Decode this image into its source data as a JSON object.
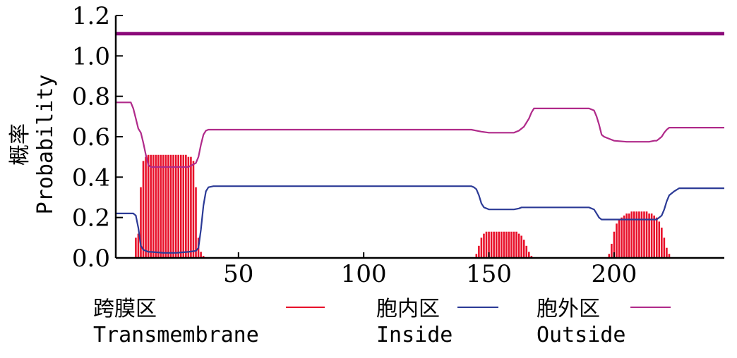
{
  "chart_data": {
    "type": "line",
    "ylabel_cn": "概率",
    "ylabel_en": "Probability",
    "xlim": [
      1,
      244
    ],
    "ylim": [
      0,
      1.2
    ],
    "x_ticks": [
      50,
      100,
      150,
      200
    ],
    "x_tick_labels": [
      "50",
      "100",
      "150",
      "200"
    ],
    "y_ticks": [
      0,
      0.2,
      0.4,
      0.6,
      0.8,
      1.0,
      1.2
    ],
    "y_tick_labels": [
      "0.0",
      "0.2",
      "0.4",
      "0.6",
      "0.8",
      "1.0",
      "1.2"
    ],
    "reference_line": {
      "y": 1.11,
      "color": "#8b0a7a"
    },
    "series": [
      {
        "name_cn": "跨膜区",
        "name_en": "Transmembrane",
        "style": "bars",
        "color": "#e8102a",
        "x": [
          9,
          10,
          11,
          12,
          13,
          14,
          15,
          16,
          17,
          18,
          19,
          20,
          21,
          22,
          23,
          24,
          25,
          26,
          27,
          28,
          29,
          30,
          31,
          32,
          33,
          34,
          35,
          36,
          37,
          145,
          146,
          147,
          148,
          149,
          150,
          151,
          152,
          153,
          154,
          155,
          156,
          157,
          158,
          159,
          160,
          161,
          162,
          163,
          164,
          165,
          166,
          167,
          198,
          199,
          200,
          201,
          202,
          203,
          204,
          205,
          206,
          207,
          208,
          209,
          210,
          211,
          212,
          213,
          214,
          215,
          216,
          217,
          218,
          219,
          220,
          221,
          222
        ],
        "values": [
          0.1,
          0.12,
          0.35,
          0.48,
          0.5,
          0.51,
          0.51,
          0.51,
          0.51,
          0.51,
          0.51,
          0.51,
          0.51,
          0.51,
          0.51,
          0.51,
          0.51,
          0.51,
          0.51,
          0.51,
          0.51,
          0.5,
          0.5,
          0.48,
          0.35,
          0.1,
          0.03,
          0.01,
          0.0,
          0.02,
          0.06,
          0.1,
          0.12,
          0.13,
          0.13,
          0.13,
          0.13,
          0.13,
          0.13,
          0.13,
          0.13,
          0.13,
          0.13,
          0.13,
          0.13,
          0.13,
          0.12,
          0.11,
          0.09,
          0.06,
          0.03,
          0.01,
          0.02,
          0.07,
          0.13,
          0.17,
          0.19,
          0.2,
          0.21,
          0.22,
          0.22,
          0.23,
          0.23,
          0.23,
          0.23,
          0.23,
          0.23,
          0.23,
          0.22,
          0.22,
          0.21,
          0.2,
          0.18,
          0.15,
          0.1,
          0.05,
          0.02
        ]
      },
      {
        "name_cn": "胞内区",
        "name_en": "Inside",
        "style": "line",
        "color": "#2b3a96",
        "x": [
          1,
          8,
          9,
          10,
          11,
          12,
          13,
          14,
          15,
          20,
          25,
          30,
          33,
          34,
          35,
          36,
          37,
          38,
          40,
          143,
          144,
          145,
          146,
          147,
          148,
          150,
          155,
          160,
          162,
          163,
          164,
          165,
          166,
          168,
          190,
          192,
          193,
          194,
          195,
          196,
          198,
          200,
          215,
          217,
          218,
          219,
          220,
          221,
          222,
          224,
          226,
          244
        ],
        "values": [
          0.22,
          0.22,
          0.21,
          0.15,
          0.06,
          0.04,
          0.035,
          0.03,
          0.03,
          0.025,
          0.025,
          0.03,
          0.035,
          0.05,
          0.14,
          0.26,
          0.33,
          0.35,
          0.355,
          0.355,
          0.35,
          0.34,
          0.31,
          0.27,
          0.25,
          0.24,
          0.24,
          0.24,
          0.245,
          0.25,
          0.25,
          0.25,
          0.25,
          0.25,
          0.25,
          0.24,
          0.22,
          0.2,
          0.19,
          0.19,
          0.19,
          0.19,
          0.19,
          0.19,
          0.2,
          0.21,
          0.24,
          0.28,
          0.31,
          0.33,
          0.345,
          0.345
        ]
      },
      {
        "name_cn": "胞外区",
        "name_en": "Outside",
        "style": "line",
        "color": "#b02a8a",
        "x": [
          1,
          7,
          8,
          9,
          10,
          11,
          12,
          13,
          14,
          15,
          20,
          25,
          30,
          33,
          34,
          35,
          36,
          37,
          38,
          40,
          60,
          143,
          145,
          147,
          150,
          160,
          162,
          164,
          166,
          167,
          168,
          190,
          192,
          193,
          194,
          195,
          196,
          198,
          200,
          205,
          214,
          216,
          217,
          218,
          219,
          220,
          221,
          222,
          224,
          244
        ],
        "values": [
          0.77,
          0.77,
          0.74,
          0.69,
          0.64,
          0.62,
          0.57,
          0.51,
          0.46,
          0.45,
          0.45,
          0.45,
          0.45,
          0.47,
          0.5,
          0.56,
          0.61,
          0.63,
          0.635,
          0.635,
          0.635,
          0.635,
          0.63,
          0.625,
          0.62,
          0.62,
          0.63,
          0.65,
          0.69,
          0.72,
          0.74,
          0.74,
          0.73,
          0.7,
          0.66,
          0.61,
          0.6,
          0.59,
          0.58,
          0.575,
          0.575,
          0.58,
          0.58,
          0.59,
          0.6,
          0.62,
          0.635,
          0.645,
          0.645,
          0.645
        ]
      }
    ]
  }
}
